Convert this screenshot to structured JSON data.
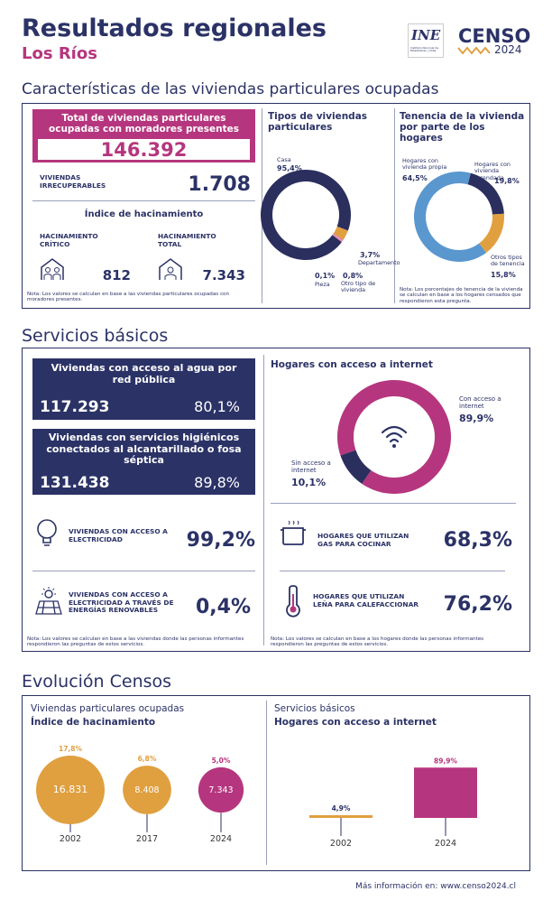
{
  "header": {
    "title": "Resultados regionales",
    "subtitle": "Los Ríos",
    "ine": "INE",
    "ine_caption": "Instituto Nacional de Estadísticas | Chile",
    "censo": "CENSO",
    "censo_year": "2024"
  },
  "viviendas": {
    "title": "Características de las viviendas particulares ocupadas",
    "total_label": "Total de viviendas particulares ocupadas con moradores presentes",
    "total_value": "146.392",
    "irrecuperables_label": "VIVIENDAS IRRECUPERABLES",
    "irrecuperables_value": "1.708",
    "hacinamiento_title": "Índice de hacinamiento",
    "critico_label": "HACINAMIENTO CRÍTICO",
    "critico_value": "812",
    "total_hac_label": "HACINAMIENTO TOTAL",
    "total_hac_value": "7.343",
    "note": "Nota: Los valores se calculan en base a las viviendas particulares ocupadas con moradores presentes.",
    "tipos": {
      "type": "donut",
      "title": "Tipos de viviendas particulares",
      "labels": [
        "Casa",
        "Departamento",
        "Pieza",
        "Otro tipo de vivienda"
      ],
      "values": [
        95.4,
        3.7,
        0.1,
        0.8
      ],
      "value_labels": [
        "95,4%",
        "3,7%",
        "0,1%",
        "0,8%"
      ],
      "colors": [
        "#2b2f5e",
        "#e0a03f",
        "#b5367e",
        "#e58fb8"
      ]
    },
    "tenencia": {
      "type": "donut",
      "title": "Tenencia de la vivienda por parte de los hogares",
      "labels": [
        "Hogares con vivienda arrendada",
        "Otros tipos de tenencia",
        "Hogares con vivienda propia"
      ],
      "values": [
        19.8,
        15.8,
        64.5
      ],
      "value_labels": [
        "19,8%",
        "15,8%",
        "64,5%"
      ],
      "colors": [
        "#2b2f5e",
        "#e0a03f",
        "#5a97cf"
      ],
      "note": "Nota: Los porcentajes de tenencia de la vivienda se calculan en base a los hogares censados que respondieron esta pregunta."
    }
  },
  "servicios": {
    "title": "Servicios básicos",
    "agua_label": "Viviendas con acceso al agua por red pública",
    "agua_count": "117.293",
    "agua_pct": "80,1%",
    "alc_label": "Viviendas con servicios higiénicos conectados al alcantarillado o fosa séptica",
    "alc_count": "131.438",
    "alc_pct": "89,8%",
    "elec_label": "VIVIENDAS CON ACCESO A ELECTRICIDAD",
    "elec_pct": "99,2%",
    "renov_label": "VIVIENDAS CON ACCESO A ELECTRICIDAD A TRAVÉS DE ENERGÍAS RENOVABLES",
    "renov_pct": "0,4%",
    "note_left": "Nota: Los valores se calculan en base a las viviendas donde las personas informantes respondieron las preguntas de estos servicios.",
    "internet": {
      "type": "donut",
      "title": "Hogares con acceso a internet",
      "labels": [
        "Con acceso a internet",
        "Sin acceso a internet"
      ],
      "values": [
        89.9,
        10.1
      ],
      "value_labels": [
        "89,9%",
        "10,1%"
      ],
      "colors": [
        "#b5367e",
        "#2b2f5e"
      ]
    },
    "gas_label": "HOGARES QUE UTILIZAN GAS PARA COCINAR",
    "gas_pct": "68,3%",
    "lena_label": "HOGARES QUE UTILIZAN LEÑA PARA CALEFACCIONAR",
    "lena_pct": "76,2%",
    "note_right": "Nota: Los valores se calculan en base a los hogares donde las personas informantes respondieron las preguntas de estos servicios."
  },
  "evolucion": {
    "title": "Evolución Censos",
    "hacinamiento": {
      "type": "bubble",
      "subtitle": "Viviendas particulares ocupadas",
      "title": "Índice de hacinamiento",
      "categories": [
        "2002",
        "2017",
        "2024"
      ],
      "values": [
        16831,
        8408,
        7343
      ],
      "value_labels": [
        "16.831",
        "8.408",
        "7.343"
      ],
      "percentages": [
        17.8,
        6.8,
        5.0
      ],
      "percentage_labels": [
        "17,8%",
        "6,8%",
        "5,0%"
      ],
      "colors": [
        "#e0a03f",
        "#e0a03f",
        "#b5367e"
      ]
    },
    "internet": {
      "type": "bar",
      "subtitle": "Servicios básicos",
      "title": "Hogares con acceso a internet",
      "categories": [
        "2002",
        "2024"
      ],
      "values": [
        4.9,
        89.9
      ],
      "value_labels": [
        "4,9%",
        "89,9%"
      ],
      "colors": [
        "#e0a03f",
        "#b5367e"
      ]
    }
  },
  "footer": "Más información en: www.censo2024.cl"
}
